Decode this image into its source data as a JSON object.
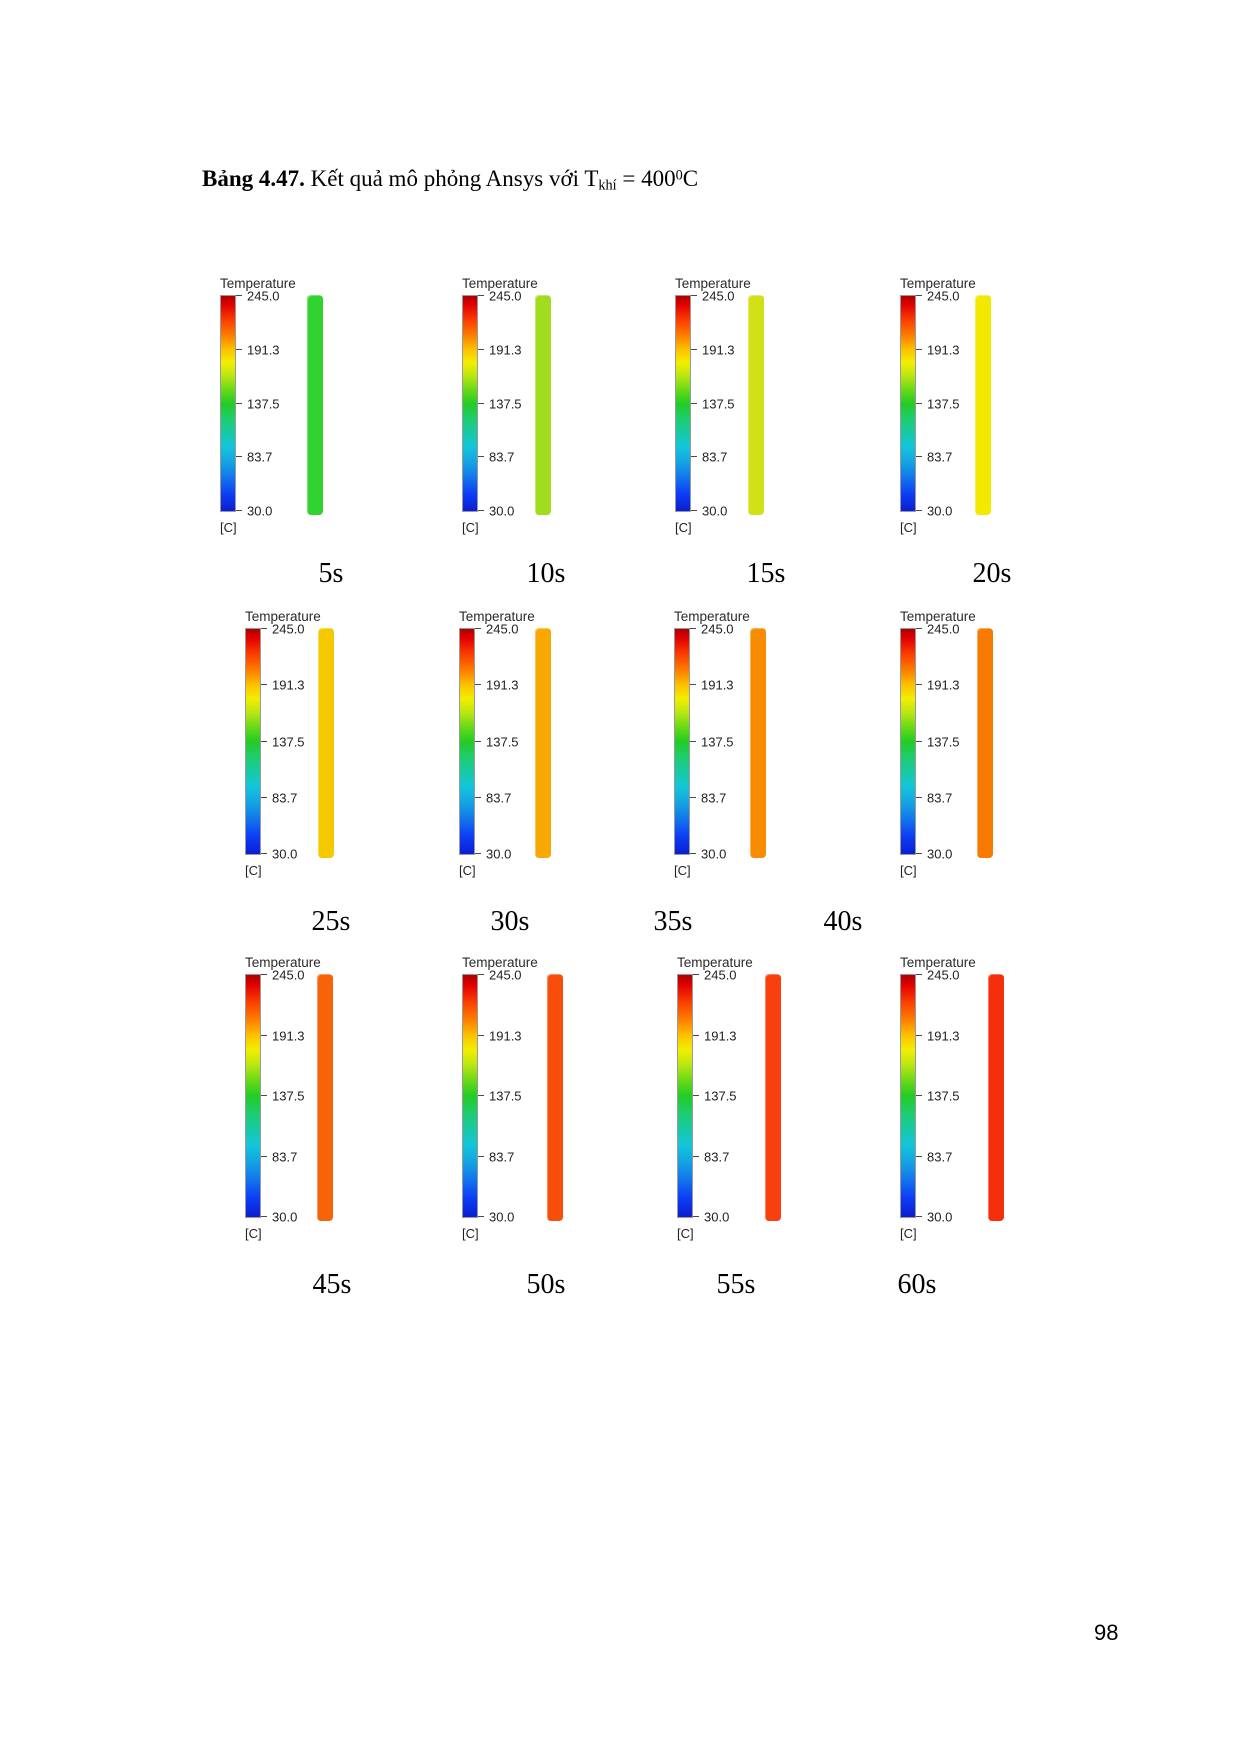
{
  "document": {
    "title": {
      "bold": "Bảng 4.47.",
      "text": " Kết quả mô phỏng Ansys với T",
      "subscript": "khí",
      "mid": " = 400",
      "superscript": "0",
      "end": "C"
    },
    "page_number": "98"
  },
  "legend": {
    "title": "Temperature",
    "unit": "[C]",
    "ticks": [
      "245.0",
      "191.3",
      "137.5",
      "83.7",
      "30.0"
    ],
    "gradient": [
      "#ad0000 0%",
      "#e00000 4%",
      "#fa3c00 11%",
      "#fc8400 19%",
      "#fcc200 25%",
      "#f2ee00 31%",
      "#bce614 37%",
      "#64d916 44%",
      "#24cc24 50%",
      "#1ecd6e 57%",
      "#18c9a8 64%",
      "#13c6d9 70%",
      "#149fe3 78%",
      "#1272ec 85%",
      "#0d3ef5 92%",
      "#0a1ed2 100%"
    ]
  },
  "panels": [
    {
      "time": "5s",
      "color": "#30d330"
    },
    {
      "time": "10s",
      "color": "#a2dc1e"
    },
    {
      "time": "15s",
      "color": "#d2e018"
    },
    {
      "time": "20s",
      "color": "#f2e800"
    },
    {
      "time": "25s",
      "color": "#f6c800"
    },
    {
      "time": "30s",
      "color": "#f8a800"
    },
    {
      "time": "35s",
      "color": "#f78c00"
    },
    {
      "time": "40s",
      "color": "#f87a00"
    },
    {
      "time": "45s",
      "color": "#f86208"
    },
    {
      "time": "50s",
      "color": "#f84e0c"
    },
    {
      "time": "55s",
      "color": "#f93e10"
    },
    {
      "time": "60s",
      "color": "#f52e0c"
    }
  ]
}
